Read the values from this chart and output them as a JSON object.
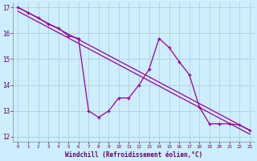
{
  "background_color": "#cceeff",
  "line_color": "#990099",
  "grid_color": "#aacccc",
  "xlabel": "Windchill (Refroidissement éolien,°C)",
  "xlabel_color": "#660066",
  "tick_color": "#660066",
  "xlim": [
    -0.5,
    23.5
  ],
  "ylim": [
    11.8,
    17.2
  ],
  "yticks": [
    12,
    13,
    14,
    15,
    16,
    17
  ],
  "xticks": [
    0,
    1,
    2,
    3,
    4,
    5,
    6,
    7,
    8,
    9,
    10,
    11,
    12,
    13,
    14,
    15,
    16,
    17,
    18,
    19,
    20,
    21,
    22,
    23
  ],
  "series1_x": [
    0,
    1,
    2,
    3,
    4,
    5,
    6,
    7,
    8,
    9,
    10,
    11,
    12,
    13,
    14,
    15,
    16,
    17,
    18,
    19,
    20,
    21,
    22,
    23
  ],
  "series1_y": [
    17.0,
    16.8,
    16.6,
    16.35,
    16.2,
    15.9,
    15.8,
    13.0,
    12.75,
    13.0,
    13.5,
    13.5,
    14.0,
    14.6,
    15.8,
    15.45,
    14.9,
    14.4,
    13.15,
    12.5,
    12.5,
    12.5,
    12.45,
    12.25
  ],
  "series2_x": [
    0,
    23
  ],
  "series2_y": [
    17.0,
    12.25
  ],
  "series3_x": [
    0,
    23
  ],
  "series3_y": [
    16.85,
    12.1
  ]
}
